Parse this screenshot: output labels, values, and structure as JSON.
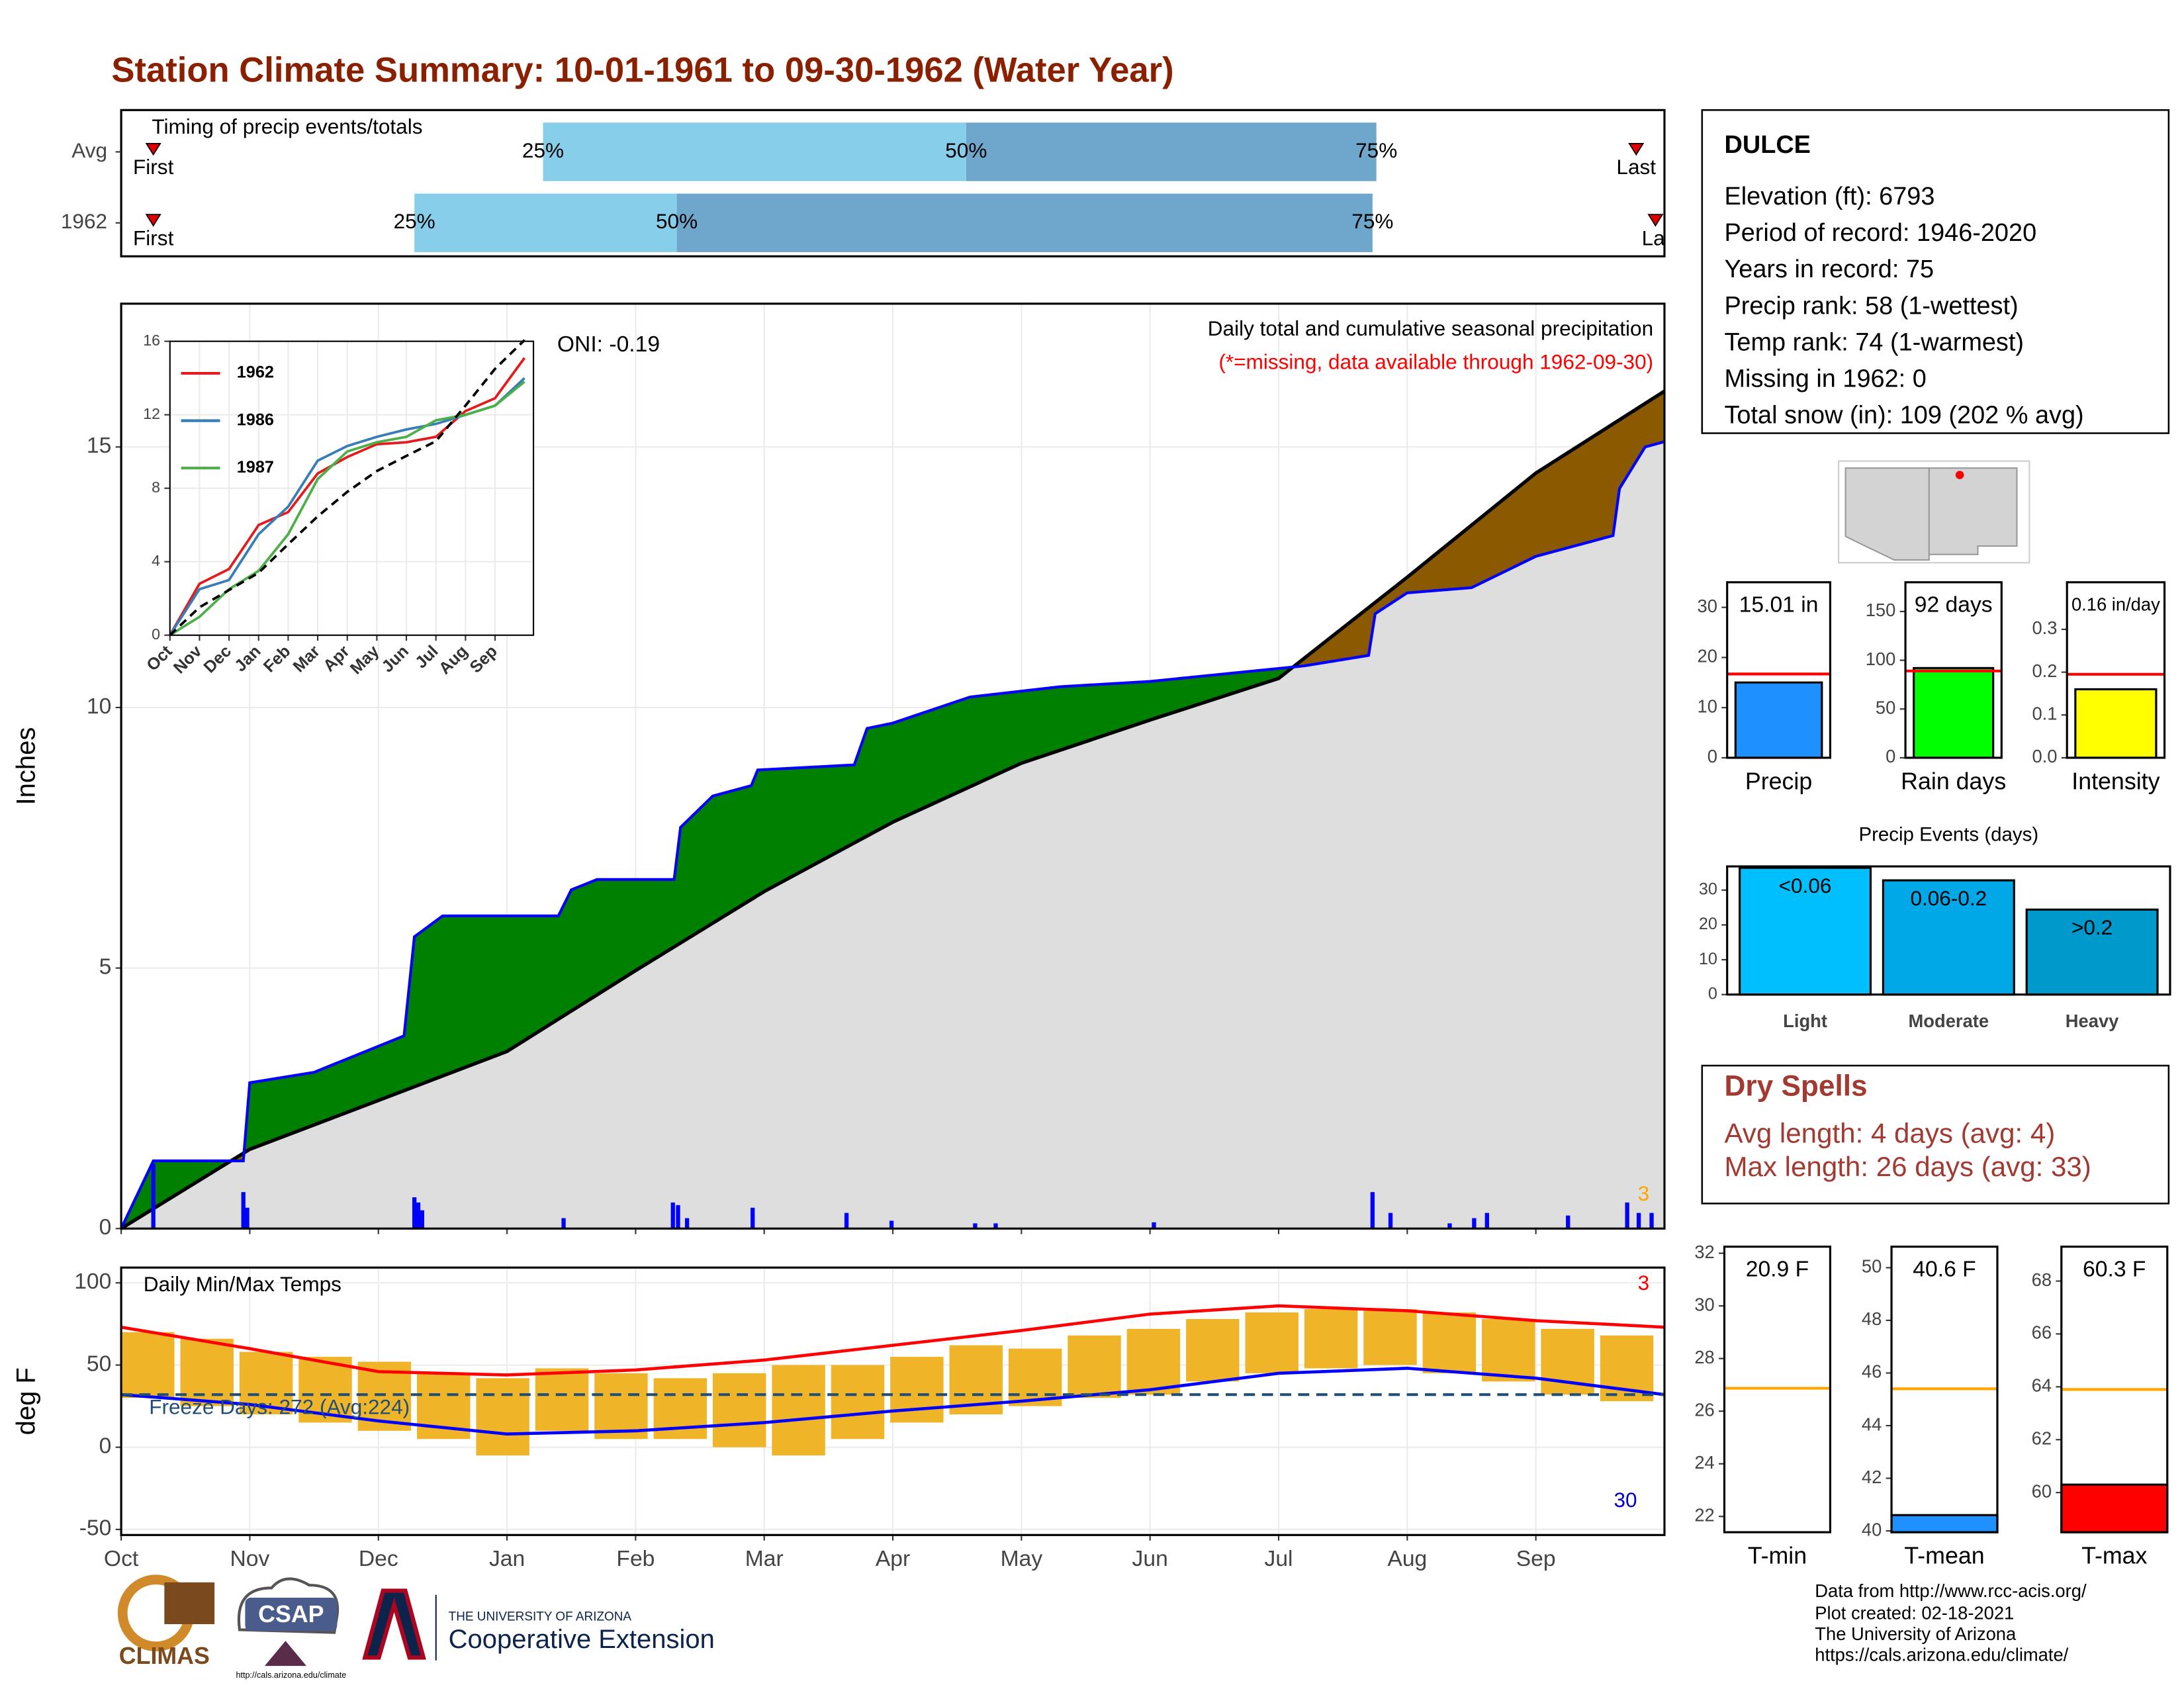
{
  "title": "Station Climate Summary: 10-01-1961 to 09-30-1962 (Water Year)",
  "station": {
    "name": "DULCE",
    "lines": [
      "Elevation (ft): 6793",
      "Period of record: 1946-2020",
      "Years in record: 75",
      "Precip rank: 58 (1-wettest)",
      "Temp rank: 74 (1-warmest)",
      "Missing in 1962: 0",
      "Total snow (in): 109 (202 % avg)"
    ]
  },
  "dry_spells": {
    "title": "Dry Spells",
    "lines": [
      "Avg length: 4 days (avg: 4)",
      "Max length: 26 days (avg: 33)"
    ]
  },
  "footer": [
    "Data from http://www.rcc-acis.org/",
    "Plot created: 02-18-2021",
    "The University of Arizona",
    "https://cals.arizona.edu/climate/"
  ],
  "logos": {
    "climas": "CLIMAS",
    "csap": "CSAP",
    "csap_url": "http://cals.arizona.edu/climate",
    "ua": "THE UNIVERSITY OF ARIZONA",
    "coop": "Cooperative Extension"
  },
  "chart_data": [
    {
      "type": "timeline",
      "title": "Timing of precip events/totals",
      "rows": [
        "Avg",
        "1962"
      ],
      "xlim": [
        0,
        12
      ],
      "first": [
        0.25,
        0.25
      ],
      "q25": [
        3.28,
        2.28
      ],
      "q50": [
        6.57,
        4.32
      ],
      "q75": [
        9.76,
        9.73
      ],
      "last": [
        11.78,
        11.93
      ],
      "quantile_labels": [
        "25%",
        "50%",
        "75%"
      ],
      "first_label": "First",
      "last_labels": [
        "Last",
        "La"
      ],
      "colors": [
        "#87ceeb",
        "#6ea6cc"
      ],
      "marker_color": "#e00000"
    },
    {
      "type": "area",
      "subtitle": "Daily total and cumulative seasonal precipitation",
      "note": "(*=missing, data available through 1962-09-30)",
      "annotation": "ONI: -0.19",
      "ylabel": "Inches",
      "xlim": [
        0,
        12
      ],
      "ylim": [
        0,
        17.75
      ],
      "xticks": [
        0,
        1,
        2,
        3,
        4,
        5,
        6,
        7,
        8,
        9,
        10,
        11
      ],
      "yticks": [
        0,
        5,
        10,
        15
      ],
      "grid": true,
      "observed": {
        "color": "#0000ff",
        "x": [
          0,
          0.25,
          0.95,
          1.0,
          1.5,
          2.2,
          2.28,
          2.5,
          3.4,
          3.5,
          3.7,
          4.3,
          4.35,
          4.6,
          4.9,
          4.95,
          5.7,
          5.8,
          6.0,
          6.6,
          7.3,
          8.0,
          9.2,
          9.7,
          9.75,
          10.0,
          10.5,
          11.0,
          11.6,
          11.65,
          11.85,
          12
        ],
        "values": [
          0,
          1.3,
          1.3,
          2.8,
          3.0,
          3.7,
          5.6,
          6.0,
          6.0,
          6.5,
          6.7,
          6.7,
          7.7,
          8.3,
          8.5,
          8.8,
          8.9,
          9.6,
          9.7,
          10.2,
          10.4,
          10.5,
          10.8,
          11.0,
          11.8,
          12.2,
          12.3,
          12.9,
          13.3,
          14.2,
          15.0,
          15.1
        ]
      },
      "average": {
        "color": "#000000",
        "x": [
          0,
          1,
          2,
          3,
          4,
          5,
          6,
          7,
          8,
          9,
          10,
          11,
          12
        ],
        "values": [
          0,
          1.52,
          2.46,
          3.4,
          4.95,
          6.47,
          7.8,
          8.93,
          9.76,
          10.56,
          12.5,
          14.5,
          16.07
        ]
      },
      "daily": {
        "color": "#0000ff",
        "x": [
          0.25,
          0.95,
          0.98,
          2.28,
          2.31,
          2.34,
          3.44,
          4.29,
          4.33,
          4.4,
          4.91,
          5.64,
          5.99,
          6.64,
          6.8,
          8.03,
          9.73,
          9.87,
          10.33,
          10.52,
          10.62,
          11.25,
          11.71,
          11.8,
          11.9
        ],
        "values": [
          1.25,
          0.7,
          0.4,
          0.6,
          0.5,
          0.35,
          0.2,
          0.5,
          0.45,
          0.2,
          0.4,
          0.3,
          0.15,
          0.1,
          0.1,
          0.12,
          0.7,
          0.3,
          0.1,
          0.2,
          0.3,
          0.25,
          0.5,
          0.3,
          0.3
        ]
      },
      "above_color": "#008000",
      "below_color": "#8b5a00",
      "fill_color": "#dedede",
      "end_count": 3,
      "end_count_color": "#ffa500"
    },
    {
      "type": "line",
      "xlim": [
        0,
        12.3
      ],
      "ylim": [
        0,
        16
      ],
      "yticks": [
        0,
        4,
        8,
        12,
        16
      ],
      "xticks": [
        {
          "value": 0,
          "label": "Oct"
        },
        {
          "value": 1,
          "label": "Nov"
        },
        {
          "value": 2,
          "label": "Dec"
        },
        {
          "value": 3,
          "label": "Jan"
        },
        {
          "value": 4,
          "label": "Feb"
        },
        {
          "value": 5,
          "label": "Mar"
        },
        {
          "value": 6,
          "label": "Apr"
        },
        {
          "value": 7,
          "label": "May"
        },
        {
          "value": 8,
          "label": "Jun"
        },
        {
          "value": 9,
          "label": "Jul"
        },
        {
          "value": 10,
          "label": "Aug"
        },
        {
          "value": 11,
          "label": "Sep"
        }
      ],
      "grid": true,
      "x": [
        0,
        1,
        2,
        3,
        4,
        5,
        6,
        7,
        8,
        9,
        10,
        11,
        12
      ],
      "series": [
        {
          "name": "1962",
          "color": "#e41a1c",
          "values": [
            0,
            2.8,
            3.6,
            6.0,
            6.7,
            8.8,
            9.7,
            10.4,
            10.5,
            10.8,
            12.2,
            12.9,
            15.1
          ]
        },
        {
          "name": "1986",
          "color": "#377eb8",
          "values": [
            0,
            2.5,
            3.0,
            5.5,
            7.0,
            9.5,
            10.3,
            10.8,
            11.2,
            11.5,
            12,
            12.5,
            14.0
          ]
        },
        {
          "name": "1987",
          "color": "#4daf4a",
          "values": [
            0,
            1.0,
            2.5,
            3.5,
            5.5,
            8.5,
            10.0,
            10.5,
            10.8,
            11.7,
            12.0,
            12.5,
            13.8
          ]
        }
      ],
      "average": {
        "color": "#000000",
        "values": [
          0,
          1.52,
          2.46,
          3.4,
          4.95,
          6.47,
          7.8,
          8.93,
          9.76,
          10.56,
          12.5,
          14.5,
          16.07
        ]
      }
    },
    {
      "type": "range",
      "title": "Daily Min/Max Temps",
      "ylabel": "deg F",
      "freeze_label": "Freeze Days: 272 (Avg:224)",
      "freeze_line": 32,
      "xlim": [
        0,
        12
      ],
      "ylim": [
        -53.4,
        109.3
      ],
      "yticks": [
        -50,
        0,
        50,
        100
      ],
      "grid": true,
      "xticks": [
        {
          "value": 0,
          "label": "Oct"
        },
        {
          "value": 1,
          "label": "Nov"
        },
        {
          "value": 2,
          "label": "Dec"
        },
        {
          "value": 3,
          "label": "Jan"
        },
        {
          "value": 4,
          "label": "Feb"
        },
        {
          "value": 5,
          "label": "Mar"
        },
        {
          "value": 6,
          "label": "Apr"
        },
        {
          "value": 7,
          "label": "May"
        },
        {
          "value": 8,
          "label": "Jun"
        },
        {
          "value": 9,
          "label": "Jul"
        },
        {
          "value": 10,
          "label": "Aug"
        },
        {
          "value": 11,
          "label": "Sep"
        }
      ],
      "x": [
        0,
        0.46,
        0.92,
        1.38,
        1.84,
        2.3,
        2.76,
        3.22,
        3.68,
        4.14,
        4.6,
        5.06,
        5.52,
        5.98,
        6.44,
        6.9,
        7.36,
        7.82,
        8.28,
        8.74,
        9.2,
        9.66,
        10.12,
        10.58,
        11.04,
        11.5
      ],
      "highs": [
        70,
        66,
        58,
        55,
        52,
        45,
        42,
        48,
        45,
        42,
        45,
        50,
        50,
        55,
        62,
        60,
        68,
        72,
        78,
        82,
        84,
        84,
        82,
        78,
        72,
        68
      ],
      "lows": [
        30,
        25,
        20,
        15,
        10,
        5,
        -5,
        10,
        5,
        5,
        0,
        -5,
        5,
        15,
        20,
        25,
        30,
        32,
        40,
        45,
        48,
        50,
        45,
        40,
        32,
        28
      ],
      "bar_color": "#f0b429",
      "normal_max": {
        "color": "#ff0000",
        "x": [
          0,
          1,
          2,
          3,
          4,
          5,
          6,
          7,
          8,
          9,
          10,
          11,
          12
        ],
        "values": [
          73,
          60,
          46,
          44,
          47,
          53,
          62,
          71,
          81,
          86,
          83,
          77,
          73
        ]
      },
      "normal_min": {
        "color": "#0000ff",
        "x": [
          0,
          1,
          2,
          3,
          4,
          5,
          6,
          7,
          8,
          9,
          10,
          11,
          12
        ],
        "values": [
          32,
          26,
          16,
          8,
          10,
          15,
          22,
          28,
          35,
          45,
          48,
          42,
          32
        ]
      },
      "high_count": 3,
      "low_count": 30
    },
    {
      "type": "bar",
      "categories": [
        "Precip"
      ],
      "values": [
        15.01
      ],
      "value_labels": [
        "15.01 in"
      ],
      "color": "#1e90ff",
      "reference": 16.7,
      "reference_color": "#ff0000",
      "ylim": [
        0,
        35
      ],
      "yticks": [
        0,
        10,
        20,
        30
      ]
    },
    {
      "type": "bar",
      "categories": [
        "Rain days"
      ],
      "values": [
        92
      ],
      "value_labels": [
        "92 days"
      ],
      "color": "#00ff00",
      "reference": 89,
      "reference_color": "#ff0000",
      "ylim": [
        0,
        180
      ],
      "yticks": [
        0,
        50,
        100,
        150
      ]
    },
    {
      "type": "bar",
      "categories": [
        "Intensity"
      ],
      "values": [
        0.16
      ],
      "value_labels": [
        "0.16 in/day"
      ],
      "color": "#ffff00",
      "reference": 0.195,
      "reference_color": "#ff0000",
      "ylim": [
        0,
        0.41
      ],
      "yticks": [
        {
          "value": 0,
          "label": "0.0"
        },
        {
          "value": 0.1,
          "label": "0.1"
        },
        {
          "value": 0.2,
          "label": "0.2"
        },
        {
          "value": 0.3,
          "label": "0.3"
        }
      ]
    },
    {
      "type": "bar",
      "title": "Precip Events (days)",
      "categories": [
        "Light",
        "Moderate",
        "Heavy"
      ],
      "values": [
        36.4,
        32.8,
        24.4
      ],
      "bin_labels": [
        "<0.06",
        "0.06-0.2",
        ">0.2"
      ],
      "colors": [
        "#00bfff",
        "#00a8e8",
        "#0099cc"
      ],
      "ylim": [
        0,
        36.8
      ],
      "yticks": [
        0,
        10,
        20,
        30
      ]
    },
    {
      "type": "bar",
      "categories": [
        "T-min"
      ],
      "values": [
        20.9
      ],
      "value_labels": [
        "20.9 F"
      ],
      "color": "#ffffff",
      "reference": 26.87,
      "reference_color": "#ffa500",
      "ylim": [
        21.4,
        32.25
      ],
      "yticks": [
        22,
        24,
        26,
        28,
        30,
        32
      ]
    },
    {
      "type": "bar",
      "categories": [
        "T-mean"
      ],
      "values": [
        40.6
      ],
      "value_labels": [
        "40.6 F"
      ],
      "color": "#1e90ff",
      "reference": 45.4,
      "reference_color": "#ffa500",
      "ylim": [
        39.95,
        50.8
      ],
      "yticks": [
        40,
        42,
        44,
        46,
        48,
        50
      ]
    },
    {
      "type": "bar",
      "categories": [
        "T-max"
      ],
      "values": [
        60.3
      ],
      "value_labels": [
        "60.3 F"
      ],
      "color": "#ff0000",
      "reference": 63.9,
      "reference_color": "#ffa500",
      "ylim": [
        58.5,
        69.3
      ],
      "yticks": [
        60,
        62,
        64,
        66,
        68
      ]
    }
  ]
}
